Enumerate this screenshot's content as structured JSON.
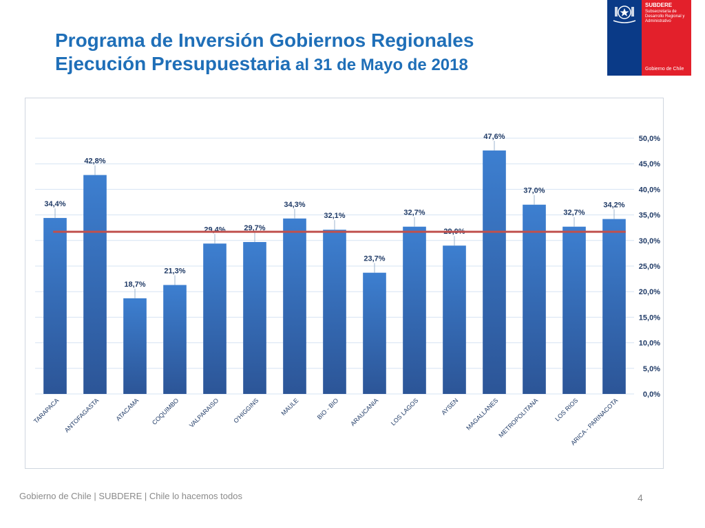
{
  "title": {
    "line1": "Programa de Inversión Gobiernos Regionales",
    "line2_main": "Ejecución Presupuestaria",
    "line2_rest": " al 31 de Mayo de 2018"
  },
  "logo": {
    "org": "SUBDERE",
    "subtitle": "Subsecretaría de Desarrollo Regional y Administrativo",
    "government": "Gobierno de Chile"
  },
  "footer": {
    "text": "Gobierno de Chile | SUBDERE | Chile lo hacemos todos",
    "page": "4"
  },
  "colors": {
    "title": "#1f6fb8",
    "bar_top": "#3d7fd0",
    "bar_bottom": "#2c5597",
    "average_line": "#c0504d",
    "axis_text": "#1f3a66"
  },
  "chart_data": {
    "type": "bar",
    "categories": [
      "TARAPACA",
      "ANTOFAGASTA",
      "ATACAMA",
      "COQUIMBO",
      "VALPARAISO",
      "O'HIGGINS",
      "MAULE",
      "BIO - BIO",
      "ARAUCANIA",
      "LOS LAGOS",
      "AYSEN",
      "MAGALLANES",
      "METROPOLITANA",
      "LOS RIOS",
      "ARICA - PARINACOTA"
    ],
    "values": [
      34.4,
      42.8,
      18.7,
      21.3,
      29.4,
      29.7,
      34.3,
      32.1,
      23.7,
      32.7,
      29.0,
      47.6,
      37.0,
      32.7,
      34.2
    ],
    "value_labels": [
      "34,4%",
      "42,8%",
      "18,7%",
      "21,3%",
      "29,4%",
      "29,7%",
      "34,3%",
      "32,1%",
      "23,7%",
      "32,7%",
      "29,0%",
      "47,6%",
      "37,0%",
      "32,7%",
      "34,2%"
    ],
    "reference_line": 31.7,
    "y_ticks": [
      0,
      5,
      10,
      15,
      20,
      25,
      30,
      35,
      40,
      45,
      50
    ],
    "y_tick_labels": [
      "0,0%",
      "5,0%",
      "10,0%",
      "15,0%",
      "20,0%",
      "25,0%",
      "30,0%",
      "35,0%",
      "40,0%",
      "45,0%",
      "50,0%"
    ],
    "ylim": [
      0,
      50
    ],
    "y_axis_side": "right",
    "grid": true,
    "title": "",
    "xlabel": "",
    "ylabel": ""
  }
}
